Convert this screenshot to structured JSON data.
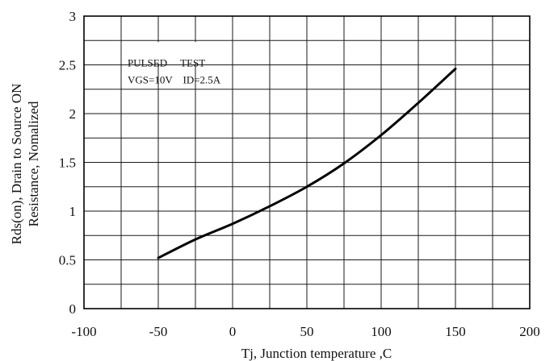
{
  "chart_data": {
    "type": "line",
    "title": "",
    "xlabel": "Tj, Junction temperature ,C",
    "ylabel_lines": [
      "Rds(on), Drain to Source ON",
      "Resistance, Nomalized"
    ],
    "xlim": [
      -100,
      200
    ],
    "ylim": [
      0,
      3
    ],
    "x_ticks": [
      -100,
      -50,
      0,
      50,
      100,
      150,
      200
    ],
    "x_tick_labels": [
      "-100",
      "-50",
      "0",
      "50",
      "100",
      "150",
      "200"
    ],
    "y_ticks": [
      0,
      0.5,
      1,
      1.5,
      2,
      2.5,
      3
    ],
    "y_tick_labels": [
      "0",
      "0.5",
      "1",
      "1.5",
      "2",
      "2.5",
      "3"
    ],
    "x_grid_step": 25,
    "y_grid_step": 0.25,
    "grid": true,
    "annotations": [
      "PULSED     TEST",
      "VGS=10V    ID=2.5A"
    ],
    "series": [
      {
        "x": [
          -50,
          -25,
          0,
          25,
          50,
          75,
          100,
          125,
          150
        ],
        "y": [
          0.52,
          0.71,
          0.87,
          1.05,
          1.25,
          1.49,
          1.78,
          2.11,
          2.46
        ]
      }
    ],
    "colors": {
      "line": "#000000",
      "grid": "#1a1a1a",
      "background": "#ffffff"
    }
  }
}
